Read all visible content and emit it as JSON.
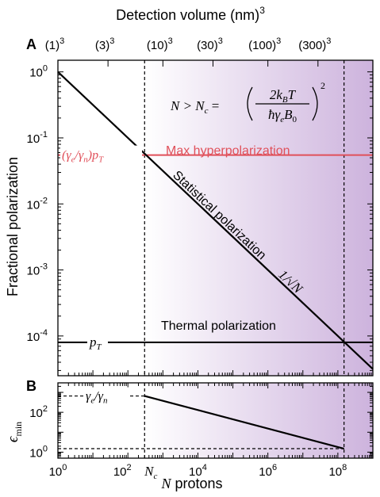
{
  "figure_title": "Detection volume (nm)",
  "figure_title_power": "3",
  "panel_a_label": "A",
  "panel_b_label": "B",
  "colors": {
    "purple": "#cdb3dd",
    "red": "#e0505a",
    "black": "#000000"
  },
  "chart_data": [
    {
      "type": "line",
      "panel": "A",
      "xscale": "log",
      "yscale": "log",
      "xlim": [
        1,
        1000000000
      ],
      "ylim": [
        2.5e-05,
        1.5
      ],
      "xlabel": "N protons",
      "ylabel": "Fractional polarization",
      "x_ticks": [
        {
          "value": 1,
          "base": "10",
          "exp": "0"
        },
        {
          "value": 100,
          "base": "10",
          "exp": "2"
        },
        {
          "value": 10000,
          "base": "10",
          "exp": "4"
        },
        {
          "value": 1000000,
          "base": "10",
          "exp": "6"
        },
        {
          "value": 100000000,
          "base": "10",
          "exp": "8"
        }
      ],
      "y_ticks": [
        {
          "value": 1,
          "base": "10",
          "exp": "0"
        },
        {
          "value": 0.1,
          "base": "10",
          "exp": "-1"
        },
        {
          "value": 0.01,
          "base": "10",
          "exp": "-2"
        },
        {
          "value": 0.001,
          "base": "10",
          "exp": "-3"
        },
        {
          "value": 0.0001,
          "base": "10",
          "exp": "-4"
        }
      ],
      "top_axis": {
        "label": "Detection volume (nm)",
        "label_power": "3",
        "ticks": [
          {
            "value": 1,
            "base": "(1)",
            "exp": "3"
          },
          {
            "value": 27,
            "base": "(3)",
            "exp": "3"
          },
          {
            "value": 1000,
            "base": "(10)",
            "exp": "3"
          },
          {
            "value": 27000,
            "base": "(30)",
            "exp": "3"
          },
          {
            "value": 1000000,
            "base": "(100)",
            "exp": "3"
          },
          {
            "value": 27000000,
            "base": "(300)",
            "exp": "3"
          }
        ]
      },
      "shaded_region": {
        "x_start": 300,
        "x_end": 1000000000,
        "from_color": "#ffffff",
        "to_color": "#cdb3dd"
      },
      "vertical_markers": [
        {
          "name": "Nc",
          "x": 300
        },
        {
          "name": "N_end",
          "x": 150000000
        }
      ],
      "series": [
        {
          "name": "Statistical polarization",
          "kind": "power-law",
          "exponent": -0.5,
          "x": [
            1,
            1000000000
          ],
          "y": [
            1,
            3.16e-05
          ]
        },
        {
          "name": "Max hyperpolarization",
          "kind": "constant",
          "x": [
            1,
            1000000000
          ],
          "y": [
            0.055,
            0.055
          ]
        },
        {
          "name": "Thermal polarization",
          "kind": "constant",
          "x": [
            1,
            1000000000
          ],
          "y": [
            8e-05,
            8e-05
          ]
        }
      ],
      "annotations": {
        "formula_lhs": "N > N",
        "formula_lhs_sub": "c",
        "formula_numerator": "2k",
        "formula_numerator_sub": "B",
        "formula_numerator_tail": "T",
        "formula_denominator": "ħγ",
        "formula_denominator_sub1": "e",
        "formula_denominator_mid": "B",
        "formula_denominator_sub2": "0",
        "formula_power": "2",
        "max_label": "Max hyperpolarization",
        "max_value_label_a": "(γ",
        "max_value_label_a_sub": "e",
        "max_value_label_b": "/γ",
        "max_value_label_b_sub": "n",
        "max_value_label_c": ")p",
        "max_value_label_c_sub": "T",
        "stat_label": "Statistical polarization",
        "stat_value_label": "1/√N",
        "thermal_label": "Thermal polarization",
        "thermal_value_label": "p",
        "thermal_value_label_sub": "T",
        "nc_label": "N",
        "nc_label_sub": "c"
      }
    },
    {
      "type": "line",
      "panel": "B",
      "xscale": "log",
      "yscale": "log",
      "xlim": [
        1,
        1000000000
      ],
      "ylim": [
        0.5,
        3000
      ],
      "xlabel": "N protons",
      "xlabel_italic": "N",
      "xlabel_rest": " protons",
      "ylabel": "ϵ",
      "ylabel_sub": "min",
      "y_ticks": [
        {
          "value": 1,
          "base": "10",
          "exp": "0"
        },
        {
          "value": 100,
          "base": "10",
          "exp": "2"
        }
      ],
      "series": [
        {
          "name": "ϵmin",
          "x": [
            300,
            150000000
          ],
          "y": [
            658,
            1.5
          ]
        }
      ],
      "reference_lines": [
        {
          "name": "γe/γn",
          "y": 658
        },
        {
          "name": "floor",
          "y": 1.5
        }
      ],
      "annotations": {
        "ratio_label_a": "γ",
        "ratio_label_a_sub": "e",
        "ratio_label_b": "/γ",
        "ratio_label_b_sub": "n"
      }
    }
  ]
}
